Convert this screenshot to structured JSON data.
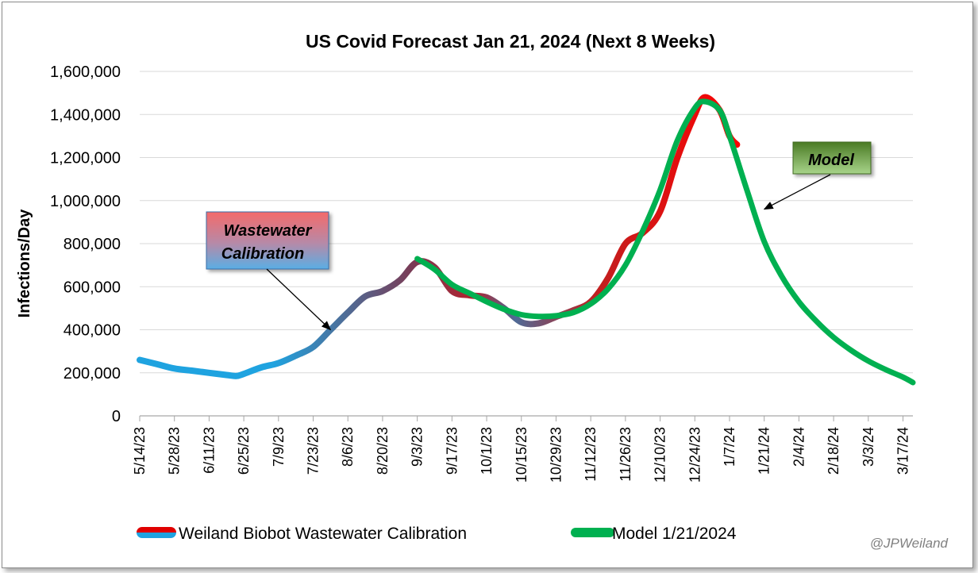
{
  "chart_data": {
    "type": "line",
    "title": "US Covid Forecast Jan 21, 2024 (Next 8 Weeks)",
    "ylabel": "Infections/Day",
    "xlabel": "",
    "ylim": [
      0,
      1600000
    ],
    "y_ticks": [
      0,
      200000,
      400000,
      600000,
      800000,
      1000000,
      1200000,
      1400000,
      1600000
    ],
    "y_tick_labels": [
      "0",
      "200,000",
      "400,000",
      "600,000",
      "800,000",
      "1,000,000",
      "1,200,000",
      "1,400,000",
      "1,600,000"
    ],
    "x_ticks": [
      "2023-05-14",
      "2023-05-28",
      "2023-06-11",
      "2023-06-25",
      "2023-07-09",
      "2023-07-23",
      "2023-08-06",
      "2023-08-20",
      "2023-09-03",
      "2023-09-17",
      "2023-10-01",
      "2023-10-15",
      "2023-10-29",
      "2023-11-12",
      "2023-11-26",
      "2023-12-10",
      "2023-12-24",
      "2024-01-07",
      "2024-01-21",
      "2024-02-04",
      "2024-02-18",
      "2024-03-03",
      "2024-03-17"
    ],
    "x_tick_labels": [
      "5/14/23",
      "5/28/23",
      "6/11/23",
      "6/25/23",
      "7/9/23",
      "7/23/23",
      "8/6/23",
      "8/20/23",
      "9/3/23",
      "9/17/23",
      "10/1/23",
      "10/15/23",
      "10/29/23",
      "11/12/23",
      "11/26/23",
      "12/10/23",
      "12/24/23",
      "1/7/24",
      "1/21/24",
      "2/4/24",
      "2/18/24",
      "3/3/24",
      "3/17/24"
    ],
    "grid": "horizontal",
    "legend_position": "bottom",
    "series": [
      {
        "name": "Weiland Biobot Wastewater Calibration",
        "color_start": "#1fa3e0",
        "color_end": "#e00000",
        "points": [
          [
            "2023-05-14",
            260000
          ],
          [
            "2023-05-21",
            240000
          ],
          [
            "2023-05-28",
            220000
          ],
          [
            "2023-06-04",
            210000
          ],
          [
            "2023-06-11",
            200000
          ],
          [
            "2023-06-18",
            190000
          ],
          [
            "2023-06-22",
            185000
          ],
          [
            "2023-06-25",
            195000
          ],
          [
            "2023-07-02",
            225000
          ],
          [
            "2023-07-09",
            245000
          ],
          [
            "2023-07-16",
            280000
          ],
          [
            "2023-07-23",
            320000
          ],
          [
            "2023-07-30",
            400000
          ],
          [
            "2023-08-06",
            480000
          ],
          [
            "2023-08-13",
            555000
          ],
          [
            "2023-08-20",
            580000
          ],
          [
            "2023-08-27",
            630000
          ],
          [
            "2023-09-03",
            715000
          ],
          [
            "2023-09-10",
            690000
          ],
          [
            "2023-09-17",
            580000
          ],
          [
            "2023-09-24",
            560000
          ],
          [
            "2023-10-01",
            550000
          ],
          [
            "2023-10-08",
            500000
          ],
          [
            "2023-10-15",
            435000
          ],
          [
            "2023-10-22",
            430000
          ],
          [
            "2023-10-29",
            460000
          ],
          [
            "2023-11-05",
            490000
          ],
          [
            "2023-11-12",
            530000
          ],
          [
            "2023-11-19",
            640000
          ],
          [
            "2023-11-26",
            800000
          ],
          [
            "2023-12-03",
            850000
          ],
          [
            "2023-12-10",
            950000
          ],
          [
            "2023-12-17",
            1200000
          ],
          [
            "2023-12-24",
            1400000
          ],
          [
            "2023-12-28",
            1480000
          ],
          [
            "2024-01-03",
            1420000
          ],
          [
            "2024-01-07",
            1300000
          ],
          [
            "2024-01-10",
            1260000
          ]
        ]
      },
      {
        "name": "Model 1/21/2024",
        "color": "#00b050",
        "points": [
          [
            "2023-09-03",
            730000
          ],
          [
            "2023-09-10",
            680000
          ],
          [
            "2023-09-17",
            610000
          ],
          [
            "2023-09-24",
            570000
          ],
          [
            "2023-10-01",
            530000
          ],
          [
            "2023-10-08",
            495000
          ],
          [
            "2023-10-15",
            470000
          ],
          [
            "2023-10-22",
            462000
          ],
          [
            "2023-10-29",
            465000
          ],
          [
            "2023-11-05",
            480000
          ],
          [
            "2023-11-12",
            520000
          ],
          [
            "2023-11-19",
            590000
          ],
          [
            "2023-11-26",
            700000
          ],
          [
            "2023-12-03",
            860000
          ],
          [
            "2023-12-10",
            1050000
          ],
          [
            "2023-12-17",
            1280000
          ],
          [
            "2023-12-24",
            1430000
          ],
          [
            "2023-12-28",
            1460000
          ],
          [
            "2024-01-03",
            1420000
          ],
          [
            "2024-01-07",
            1300000
          ],
          [
            "2024-01-14",
            1050000
          ],
          [
            "2024-01-21",
            810000
          ],
          [
            "2024-01-28",
            650000
          ],
          [
            "2024-02-04",
            530000
          ],
          [
            "2024-02-11",
            440000
          ],
          [
            "2024-02-18",
            365000
          ],
          [
            "2024-02-25",
            305000
          ],
          [
            "2024-03-03",
            255000
          ],
          [
            "2024-03-10",
            215000
          ],
          [
            "2024-03-17",
            180000
          ],
          [
            "2024-03-21",
            155000
          ]
        ]
      }
    ],
    "annotations": [
      {
        "text_line1": "Wastewater",
        "text_line2": "Calibration",
        "points_to": [
          "2023-07-30",
          400000
        ]
      },
      {
        "text": "Model",
        "points_to": [
          "2024-01-21",
          960000
        ]
      }
    ]
  },
  "credit": "@JPWeiland"
}
